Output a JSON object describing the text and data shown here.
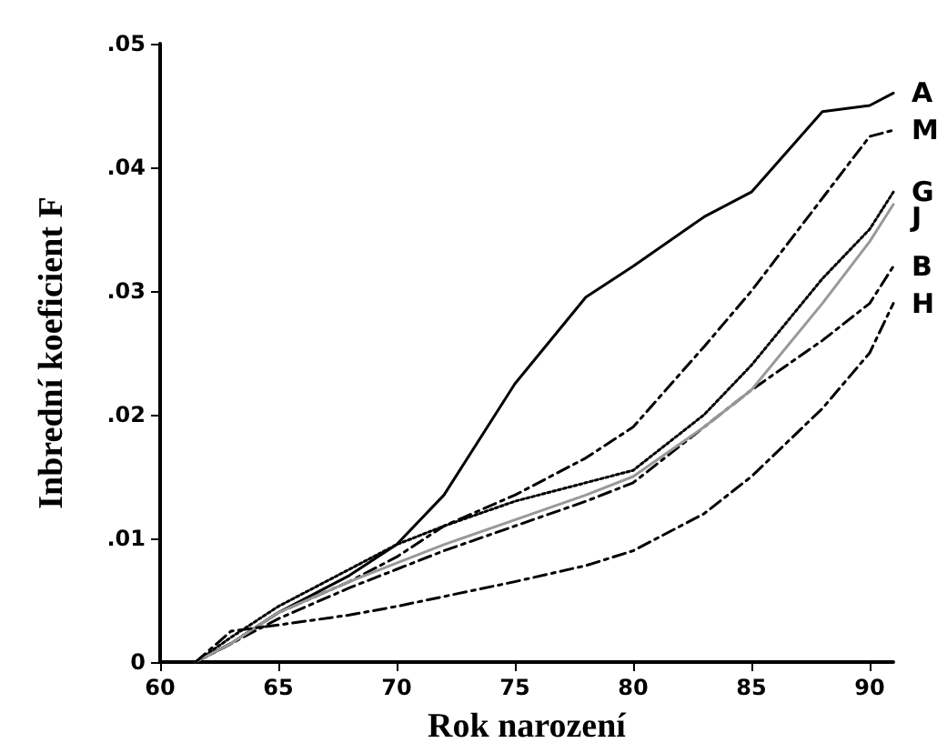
{
  "chart_data": {
    "type": "line",
    "xlabel": "Rok narození",
    "ylabel": "Inbrední koeficient F",
    "x": [
      61.5,
      63,
      65,
      68,
      70,
      72,
      75,
      78,
      80,
      83,
      85,
      88,
      90,
      91
    ],
    "series": [
      {
        "name": "A",
        "color": "#000000",
        "line_style": "solid",
        "values": [
          0,
          0.0015,
          0.004,
          0.007,
          0.0095,
          0.0135,
          0.0225,
          0.0295,
          0.032,
          0.036,
          0.038,
          0.0445,
          0.045,
          0.046
        ]
      },
      {
        "name": "M",
        "color": "#000000",
        "line_style": "dashed",
        "values": [
          0,
          0.0015,
          0.004,
          0.0065,
          0.0085,
          0.011,
          0.0135,
          0.0165,
          0.019,
          0.0255,
          0.03,
          0.0375,
          0.0425,
          0.043
        ]
      },
      {
        "name": "G",
        "color": "#000000",
        "line_style": "dotted",
        "values": [
          0,
          0.002,
          0.0045,
          0.0075,
          0.0095,
          0.011,
          0.013,
          0.0145,
          0.0155,
          0.02,
          0.024,
          0.031,
          0.035,
          0.038
        ]
      },
      {
        "name": "B",
        "color": "#000000",
        "line_style": "dashed",
        "values": [
          0,
          0.0015,
          0.0035,
          0.006,
          0.0075,
          0.009,
          0.011,
          0.013,
          0.0145,
          0.019,
          0.022,
          0.026,
          0.029,
          0.032
        ]
      },
      {
        "name": "J",
        "color": "#999999",
        "line_style": "solid",
        "values": [
          0,
          0.0015,
          0.004,
          0.0065,
          0.008,
          0.0095,
          0.0115,
          0.0135,
          0.015,
          0.019,
          0.022,
          0.029,
          0.034,
          0.037
        ]
      },
      {
        "name": "H",
        "color": "#000000",
        "line_style": "dashed",
        "values": [
          0,
          0.0025,
          0.003,
          0.0038,
          0.0045,
          0.0053,
          0.0065,
          0.0078,
          0.009,
          0.012,
          0.015,
          0.0205,
          0.025,
          0.029
        ]
      }
    ],
    "xlim": [
      60,
      91
    ],
    "xticks": [
      60,
      65,
      70,
      75,
      80,
      85,
      90
    ],
    "ylim": [
      0,
      0.05
    ],
    "yticks": [
      {
        "value": 0,
        "label": "0"
      },
      {
        "value": 0.01,
        "label": ".01"
      },
      {
        "value": 0.02,
        "label": ".02"
      },
      {
        "value": 0.03,
        "label": ".03"
      },
      {
        "value": 0.04,
        "label": ".04"
      },
      {
        "value": 0.05,
        "label": ".05"
      }
    ],
    "marker": "none",
    "grid": false,
    "legend": false
  }
}
